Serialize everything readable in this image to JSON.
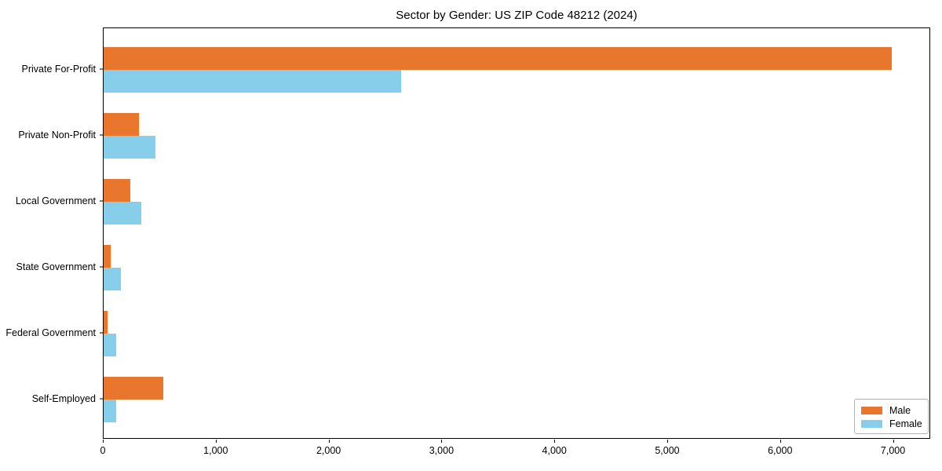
{
  "chart_data": {
    "type": "bar",
    "orientation": "horizontal",
    "title": "Sector by Gender: US ZIP Code 48212 (2024)",
    "categories": [
      "Private For-Profit",
      "Private Non-Profit",
      "Local Government",
      "State Government",
      "Federal Government",
      "Self-Employed"
    ],
    "series": [
      {
        "name": "Male",
        "color": "#E8762D",
        "values": [
          6984,
          311,
          236,
          63,
          35,
          531
        ]
      },
      {
        "name": "Female",
        "color": "#87CEEB",
        "values": [
          2636,
          457,
          336,
          155,
          109,
          113
        ]
      }
    ],
    "xlabel": "",
    "ylabel": "",
    "xlim": [
      0,
      7330
    ],
    "xticks": [
      {
        "value": 0,
        "label": "0"
      },
      {
        "value": 1000,
        "label": "1,000"
      },
      {
        "value": 2000,
        "label": "2,000"
      },
      {
        "value": 3000,
        "label": "3,000"
      },
      {
        "value": 4000,
        "label": "4,000"
      },
      {
        "value": 5000,
        "label": "5,000"
      },
      {
        "value": 6000,
        "label": "6,000"
      },
      {
        "value": 7000,
        "label": "7,000"
      }
    ],
    "grid": false,
    "legend_position": "lower right"
  }
}
